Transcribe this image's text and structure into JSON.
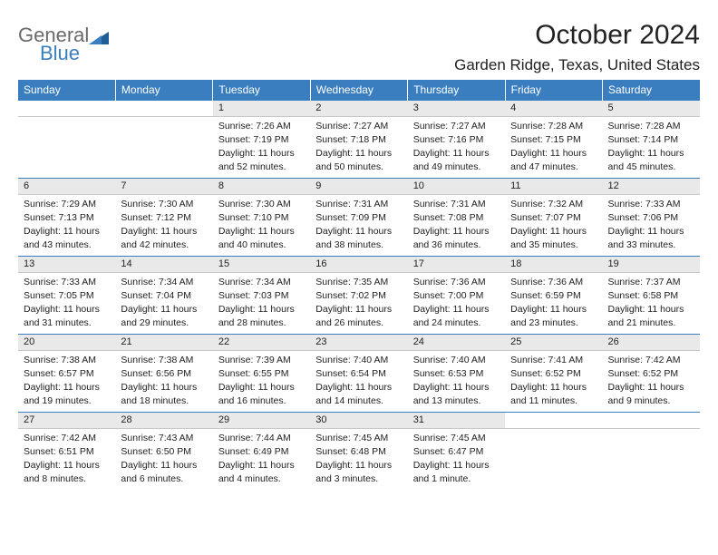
{
  "brand": {
    "part1": "General",
    "part2": "Blue"
  },
  "title": "October 2024",
  "location": "Garden Ridge, Texas, United States",
  "colors": {
    "header_bg": "#3a7ec0",
    "header_text": "#ffffff",
    "daynum_bg": "#e9e9e9",
    "row_border": "#3a7ec0",
    "text": "#222222",
    "logo_gray": "#6a6a6a",
    "logo_blue": "#3a7ec0"
  },
  "typography": {
    "title_fontsize": 30,
    "location_fontsize": 17,
    "header_fontsize": 12,
    "daynum_fontsize": 11,
    "body_fontsize": 10.5
  },
  "weekdays": [
    "Sunday",
    "Monday",
    "Tuesday",
    "Wednesday",
    "Thursday",
    "Friday",
    "Saturday"
  ],
  "labels": {
    "sunrise": "Sunrise:",
    "sunset": "Sunset:",
    "daylight": "Daylight:"
  },
  "weeks": [
    [
      null,
      null,
      {
        "n": "1",
        "sr": "7:26 AM",
        "ss": "7:19 PM",
        "dl": "11 hours and 52 minutes."
      },
      {
        "n": "2",
        "sr": "7:27 AM",
        "ss": "7:18 PM",
        "dl": "11 hours and 50 minutes."
      },
      {
        "n": "3",
        "sr": "7:27 AM",
        "ss": "7:16 PM",
        "dl": "11 hours and 49 minutes."
      },
      {
        "n": "4",
        "sr": "7:28 AM",
        "ss": "7:15 PM",
        "dl": "11 hours and 47 minutes."
      },
      {
        "n": "5",
        "sr": "7:28 AM",
        "ss": "7:14 PM",
        "dl": "11 hours and 45 minutes."
      }
    ],
    [
      {
        "n": "6",
        "sr": "7:29 AM",
        "ss": "7:13 PM",
        "dl": "11 hours and 43 minutes."
      },
      {
        "n": "7",
        "sr": "7:30 AM",
        "ss": "7:12 PM",
        "dl": "11 hours and 42 minutes."
      },
      {
        "n": "8",
        "sr": "7:30 AM",
        "ss": "7:10 PM",
        "dl": "11 hours and 40 minutes."
      },
      {
        "n": "9",
        "sr": "7:31 AM",
        "ss": "7:09 PM",
        "dl": "11 hours and 38 minutes."
      },
      {
        "n": "10",
        "sr": "7:31 AM",
        "ss": "7:08 PM",
        "dl": "11 hours and 36 minutes."
      },
      {
        "n": "11",
        "sr": "7:32 AM",
        "ss": "7:07 PM",
        "dl": "11 hours and 35 minutes."
      },
      {
        "n": "12",
        "sr": "7:33 AM",
        "ss": "7:06 PM",
        "dl": "11 hours and 33 minutes."
      }
    ],
    [
      {
        "n": "13",
        "sr": "7:33 AM",
        "ss": "7:05 PM",
        "dl": "11 hours and 31 minutes."
      },
      {
        "n": "14",
        "sr": "7:34 AM",
        "ss": "7:04 PM",
        "dl": "11 hours and 29 minutes."
      },
      {
        "n": "15",
        "sr": "7:34 AM",
        "ss": "7:03 PM",
        "dl": "11 hours and 28 minutes."
      },
      {
        "n": "16",
        "sr": "7:35 AM",
        "ss": "7:02 PM",
        "dl": "11 hours and 26 minutes."
      },
      {
        "n": "17",
        "sr": "7:36 AM",
        "ss": "7:00 PM",
        "dl": "11 hours and 24 minutes."
      },
      {
        "n": "18",
        "sr": "7:36 AM",
        "ss": "6:59 PM",
        "dl": "11 hours and 23 minutes."
      },
      {
        "n": "19",
        "sr": "7:37 AM",
        "ss": "6:58 PM",
        "dl": "11 hours and 21 minutes."
      }
    ],
    [
      {
        "n": "20",
        "sr": "7:38 AM",
        "ss": "6:57 PM",
        "dl": "11 hours and 19 minutes."
      },
      {
        "n": "21",
        "sr": "7:38 AM",
        "ss": "6:56 PM",
        "dl": "11 hours and 18 minutes."
      },
      {
        "n": "22",
        "sr": "7:39 AM",
        "ss": "6:55 PM",
        "dl": "11 hours and 16 minutes."
      },
      {
        "n": "23",
        "sr": "7:40 AM",
        "ss": "6:54 PM",
        "dl": "11 hours and 14 minutes."
      },
      {
        "n": "24",
        "sr": "7:40 AM",
        "ss": "6:53 PM",
        "dl": "11 hours and 13 minutes."
      },
      {
        "n": "25",
        "sr": "7:41 AM",
        "ss": "6:52 PM",
        "dl": "11 hours and 11 minutes."
      },
      {
        "n": "26",
        "sr": "7:42 AM",
        "ss": "6:52 PM",
        "dl": "11 hours and 9 minutes."
      }
    ],
    [
      {
        "n": "27",
        "sr": "7:42 AM",
        "ss": "6:51 PM",
        "dl": "11 hours and 8 minutes."
      },
      {
        "n": "28",
        "sr": "7:43 AM",
        "ss": "6:50 PM",
        "dl": "11 hours and 6 minutes."
      },
      {
        "n": "29",
        "sr": "7:44 AM",
        "ss": "6:49 PM",
        "dl": "11 hours and 4 minutes."
      },
      {
        "n": "30",
        "sr": "7:45 AM",
        "ss": "6:48 PM",
        "dl": "11 hours and 3 minutes."
      },
      {
        "n": "31",
        "sr": "7:45 AM",
        "ss": "6:47 PM",
        "dl": "11 hours and 1 minute."
      },
      null,
      null
    ]
  ]
}
